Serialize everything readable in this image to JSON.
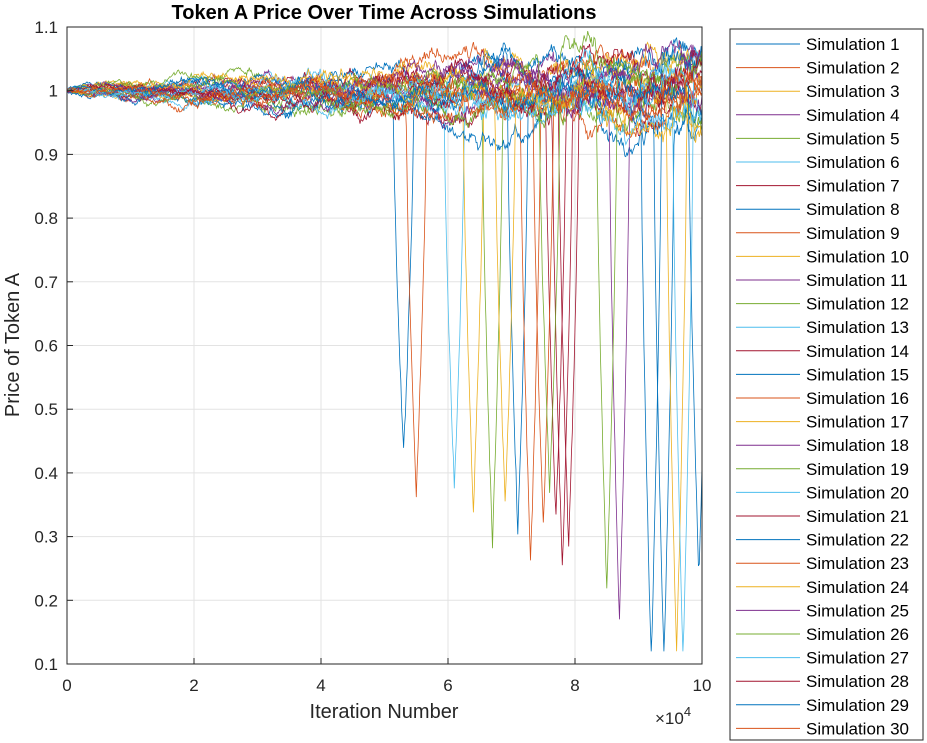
{
  "chart_data": {
    "type": "line",
    "title": "Token A Price Over Time Across Simulations",
    "xlabel": "Iteration Number",
    "ylabel": "Price of Token A",
    "xlim": [
      0,
      100000
    ],
    "ylim": [
      0.1,
      1.1
    ],
    "x_exponent_label": "×10",
    "x_exponent_power": "4",
    "x_ticks": [
      0,
      20000,
      40000,
      60000,
      80000,
      100000
    ],
    "x_tick_labels": [
      "0",
      "2",
      "4",
      "6",
      "8",
      "10"
    ],
    "y_ticks": [
      0.1,
      0.2,
      0.3,
      0.4,
      0.5,
      0.6,
      0.7,
      0.8,
      0.9,
      1,
      1.1
    ],
    "y_tick_labels": [
      "0.1",
      "0.2",
      "0.3",
      "0.4",
      "0.5",
      "0.6",
      "0.7",
      "0.8",
      "0.9",
      "1",
      "1.1"
    ],
    "grid": true,
    "legend_position": "outside-right",
    "series": [
      {
        "name": "Simulation 1",
        "color": "#0072BD",
        "crash_at": 53000,
        "min": 0.46
      },
      {
        "name": "Simulation 2",
        "color": "#D95319",
        "crash_at": 55000,
        "min": 0.4
      },
      {
        "name": "Simulation 3",
        "color": "#EDB120",
        "crash_at": 99000,
        "min": 0.95
      },
      {
        "name": "Simulation 4",
        "color": "#7E2F8E",
        "crash_at": null,
        "min": null
      },
      {
        "name": "Simulation 5",
        "color": "#77AC30",
        "crash_at": null,
        "min": null
      },
      {
        "name": "Simulation 6",
        "color": "#4DBEEE",
        "crash_at": 61000,
        "min": 0.41
      },
      {
        "name": "Simulation 7",
        "color": "#A2142F",
        "crash_at": 78000,
        "min": 0.28
      },
      {
        "name": "Simulation 8",
        "color": "#0072BD",
        "crash_at": 71000,
        "min": 0.34
      },
      {
        "name": "Simulation 9",
        "color": "#D95319",
        "crash_at": 73000,
        "min": 0.29
      },
      {
        "name": "Simulation 10",
        "color": "#EDB120",
        "crash_at": 64000,
        "min": 0.37
      },
      {
        "name": "Simulation 11",
        "color": "#7E2F8E",
        "crash_at": 87000,
        "min": 0.2
      },
      {
        "name": "Simulation 12",
        "color": "#77AC30",
        "crash_at": 67000,
        "min": 0.32
      },
      {
        "name": "Simulation 13",
        "color": "#4DBEEE",
        "crash_at": null,
        "min": null
      },
      {
        "name": "Simulation 14",
        "color": "#A2142F",
        "crash_at": 77000,
        "min": 0.36
      },
      {
        "name": "Simulation 15",
        "color": "#0072BD",
        "crash_at": 94000,
        "min": 0.13
      },
      {
        "name": "Simulation 16",
        "color": "#D95319",
        "crash_at": 75000,
        "min": 0.35
      },
      {
        "name": "Simulation 17",
        "color": "#EDB120",
        "crash_at": 96000,
        "min": 0.14
      },
      {
        "name": "Simulation 18",
        "color": "#7E2F8E",
        "crash_at": null,
        "min": null
      },
      {
        "name": "Simulation 19",
        "color": "#77AC30",
        "crash_at": 85000,
        "min": 0.25
      },
      {
        "name": "Simulation 20",
        "color": "#4DBEEE",
        "crash_at": 97000,
        "min": 0.14
      },
      {
        "name": "Simulation 21",
        "color": "#A2142F",
        "crash_at": 79000,
        "min": 0.32
      },
      {
        "name": "Simulation 22",
        "color": "#0072BD",
        "crash_at": 92000,
        "min": 0.13
      },
      {
        "name": "Simulation 23",
        "color": "#D95319",
        "crash_at": null,
        "min": null
      },
      {
        "name": "Simulation 24",
        "color": "#EDB120",
        "crash_at": 69000,
        "min": 0.38
      },
      {
        "name": "Simulation 25",
        "color": "#7E2F8E",
        "crash_at": null,
        "min": null
      },
      {
        "name": "Simulation 26",
        "color": "#77AC30",
        "crash_at": 76000,
        "min": 0.4
      },
      {
        "name": "Simulation 27",
        "color": "#4DBEEE",
        "crash_at": null,
        "min": null
      },
      {
        "name": "Simulation 28",
        "color": "#A2142F",
        "crash_at": null,
        "min": null
      },
      {
        "name": "Simulation 29",
        "color": "#0072BD",
        "crash_at": 99500,
        "min": 0.27
      },
      {
        "name": "Simulation 30",
        "color": "#D95319",
        "crash_at": null,
        "min": null
      }
    ]
  }
}
